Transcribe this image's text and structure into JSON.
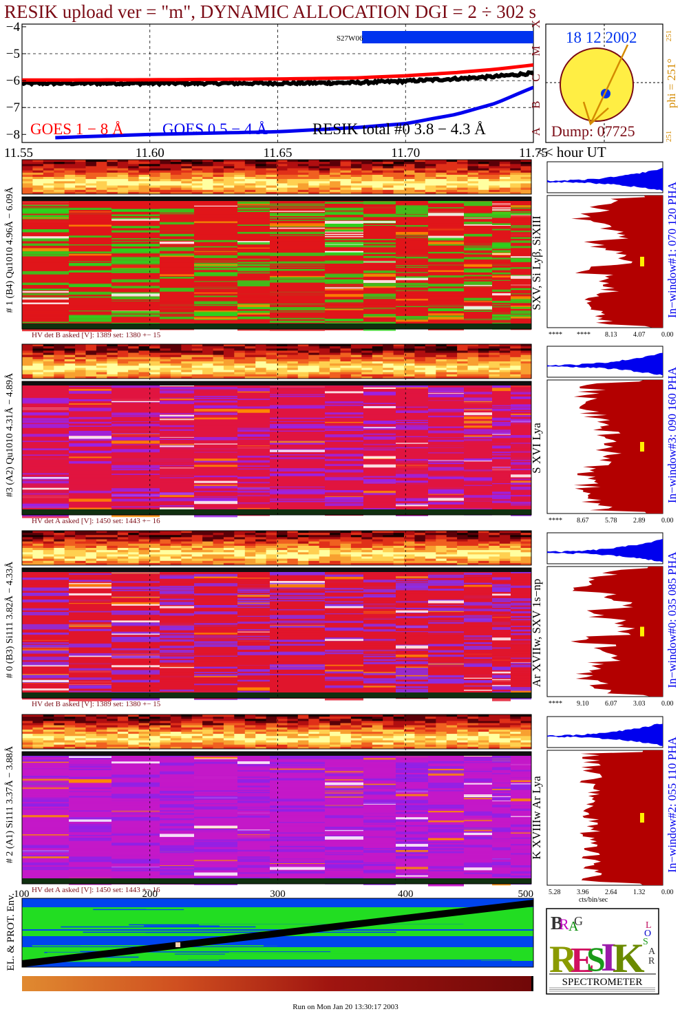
{
  "title": "RESIK upload ver = \"m\", DYNAMIC ALLOCATION  DGI =   2 ÷ 302 s",
  "colors": {
    "title": "#7a0a14",
    "goes_1_8": "#ff0000",
    "goes_05_4": "#0000ee",
    "resik_total": "#000000",
    "orange": "#d48a00",
    "sun_disc": "#ffee44",
    "hist_red": "#b30000",
    "hist_blue": "#0000ee",
    "marker": "#ffee00",
    "green": "#00dd00",
    "blue": "#0000ee",
    "magenta": "#cc00cc"
  },
  "lightcurve": {
    "y_tick_labels": [
      "−4",
      "−5",
      "−6",
      "−7",
      "−8"
    ],
    "goes_class_labels": [
      "X",
      "M",
      "C",
      "B",
      "A"
    ],
    "x_tick_labels": [
      "11.55",
      "11.60",
      "11.65",
      "11.70",
      "11.75"
    ],
    "x_unit_label": "<< hour UT",
    "event_label": "S27W06",
    "legend": {
      "goes_1_8": "GOES 1 − 8 Å",
      "goes_05_4": "GOES 0.5 − 4 Å",
      "resik": "RESIK total #0  3.8 − 4.3 Å"
    }
  },
  "chart_data": {
    "type": "line",
    "title": "RESIK upload ver = \"m\", DYNAMIC ALLOCATION  DGI =   2 ÷ 302 s",
    "xlabel": "<< hour UT",
    "xlim": [
      11.55,
      11.75
    ],
    "ylim": [
      -8.3,
      -3.9
    ],
    "series": [
      {
        "name": "GOES 1 − 8 Å",
        "x": [
          11.55,
          11.6,
          11.65,
          11.68,
          11.7,
          11.72,
          11.735,
          11.75
        ],
        "y": [
          -5.98,
          -5.97,
          -5.94,
          -5.9,
          -5.82,
          -5.7,
          -5.58,
          -5.42
        ]
      },
      {
        "name": "GOES 0.5 − 4 Å",
        "x": [
          11.563,
          11.6,
          11.65,
          11.68,
          11.7,
          11.72,
          11.735,
          11.75
        ],
        "y": [
          -8.12,
          -8.0,
          -7.9,
          -7.75,
          -7.6,
          -7.25,
          -6.85,
          -6.25
        ]
      },
      {
        "name": "RESIK total #0  3.8 − 4.3 Å",
        "x": [
          11.55,
          11.6,
          11.65,
          11.68,
          11.7,
          11.72,
          11.735,
          11.75
        ],
        "y": [
          -6.1,
          -6.1,
          -6.1,
          -6.08,
          -6.02,
          -5.93,
          -5.85,
          -5.72
        ]
      }
    ]
  },
  "sun": {
    "date": "18 12 2002",
    "dump": "Dump: 07725",
    "phi_label": "phi = 251°",
    "phi_top": "251",
    "phi_bottom": "251"
  },
  "panels": [
    {
      "detector_label": "# 1 (B4) Qu1010 4.96Å − 6.09Å",
      "line_label": "SXV, Si Lyβ, SiXIII",
      "hv_text": "HV det B asked [V]:  1389 set:  1380 +−   15",
      "window_label": "In−window#1:  070 120 PHA",
      "hist_ticks": [
        "****",
        "****",
        "8.13",
        "4.07",
        "0.00"
      ],
      "main_colors": [
        "#e0151a",
        "#2bd41c"
      ]
    },
    {
      "detector_label": "#3 (A2) Qu1010  4.31Å − 4.89Å",
      "line_label": "S XVI Lya",
      "hv_text": "HV det A asked [V]:  1450 set:  1443 +−   16",
      "window_label": "In−window#3:  090 160 PHA",
      "hist_ticks": [
        "****",
        "8.67",
        "5.78",
        "2.89",
        "0.00"
      ],
      "main_colors": [
        "#e01440",
        "#9a22e6"
      ]
    },
    {
      "detector_label": "# 0 (B3) Si111  3.82Å − 4.33Å",
      "line_label": "Ar XVIIw,  SXV 1s−np",
      "hv_text": "HV det B asked [V]:  1389 set:  1380 +−   15",
      "window_label": "In−window#0:  035 085 PHA",
      "hist_ticks": [
        "****",
        "9.10",
        "6.07",
        "3.03",
        "0.00"
      ],
      "main_colors": [
        "#e0152c",
        "#8a2ee8"
      ]
    },
    {
      "detector_label": "# 2 (A1) Si111  3.37Å − 3.88Å",
      "line_label": "K XVIIIw  Ar Lya",
      "hv_text": "HV det A asked [V]:  1450 set:  1443 +−   16",
      "window_label": "In−window#2:  055 110 PHA",
      "hist_ticks": [
        "5.28",
        "3.96",
        "2.64",
        "1.32",
        "0.00"
      ],
      "hist_unit": "cts/bin/sec",
      "main_colors": [
        "#c418c8",
        "#8e22e8"
      ]
    }
  ],
  "bottom_axis": {
    "tick_labels": [
      "100",
      "200",
      "300",
      "400",
      "500"
    ],
    "side_label": "EL. & PROT. Env."
  },
  "logo": {
    "letters": [
      "B",
      "R",
      "A",
      "G",
      "R",
      "E",
      "S",
      "I",
      "K",
      "S",
      "O",
      "L",
      "A",
      "R"
    ],
    "caption": "SPECTROMETER"
  },
  "footer": "Run on Mon Jan 20 13:30:17 2003"
}
